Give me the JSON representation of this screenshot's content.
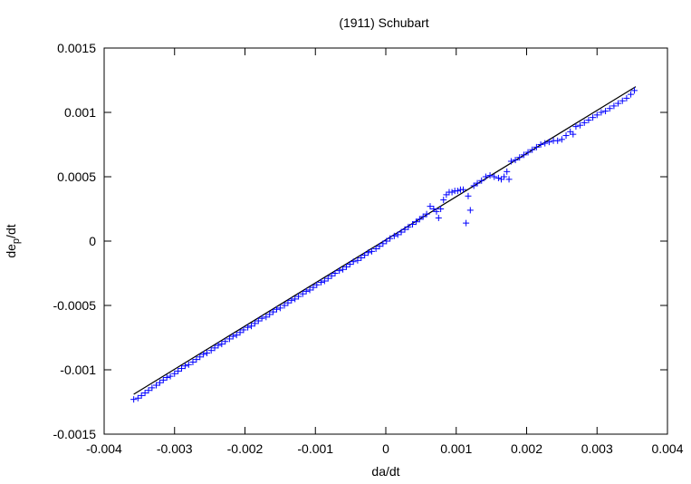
{
  "chart_data": {
    "type": "scatter",
    "title": "(1911) Schubart",
    "xlabel": "da/dt",
    "ylabel_main": "de",
    "ylabel_sub": "p",
    "ylabel_tail": "/dt",
    "xlim": [
      -0.004,
      0.004
    ],
    "ylim": [
      -0.0015,
      0.0015
    ],
    "x_ticks": [
      -0.004,
      -0.003,
      -0.002,
      -0.001,
      0,
      0.001,
      0.002,
      0.003,
      0.004
    ],
    "x_tick_labels": [
      "-0.004",
      "-0.003",
      "-0.002",
      "-0.001",
      "0",
      "0.001",
      "0.002",
      "0.003",
      "0.004"
    ],
    "y_ticks": [
      -0.0015,
      -0.001,
      -0.0005,
      0,
      0.0005,
      0.001,
      0.0015
    ],
    "y_tick_labels": [
      "-0.0015",
      "-0.001",
      "-0.0005",
      "0",
      "0.0005",
      "0.001",
      "0.0015"
    ],
    "grid": false,
    "marker_color": "#0000ff",
    "line_color": "#000000",
    "fit_line": {
      "x": [
        -0.00358,
        0.00355
      ],
      "y": [
        -0.00119,
        0.0012
      ]
    },
    "series": [
      {
        "marker": "+",
        "points": [
          [
            -0.00358,
            -0.00123
          ],
          [
            -0.00352,
            -0.00122
          ],
          [
            -0.00347,
            -0.0012
          ],
          [
            -0.00342,
            -0.00118
          ],
          [
            -0.00337,
            -0.00116
          ],
          [
            -0.00332,
            -0.00114
          ],
          [
            -0.00326,
            -0.00112
          ],
          [
            -0.00321,
            -0.0011
          ],
          [
            -0.00316,
            -0.00108
          ],
          [
            -0.00311,
            -0.00106
          ],
          [
            -0.00306,
            -0.00105
          ],
          [
            -0.003,
            -0.00103
          ],
          [
            -0.00295,
            -0.00101
          ],
          [
            -0.0029,
            -0.00099
          ],
          [
            -0.00285,
            -0.00097
          ],
          [
            -0.0028,
            -0.00096
          ],
          [
            -0.00274,
            -0.00094
          ],
          [
            -0.00269,
            -0.00092
          ],
          [
            -0.00264,
            -0.0009
          ],
          [
            -0.00259,
            -0.00088
          ],
          [
            -0.00254,
            -0.00087
          ],
          [
            -0.00248,
            -0.00085
          ],
          [
            -0.00243,
            -0.00083
          ],
          [
            -0.00238,
            -0.00081
          ],
          [
            -0.00233,
            -0.0008
          ],
          [
            -0.00228,
            -0.00078
          ],
          [
            -0.00222,
            -0.00076
          ],
          [
            -0.00217,
            -0.00074
          ],
          [
            -0.00212,
            -0.00073
          ],
          [
            -0.00207,
            -0.00071
          ],
          [
            -0.00202,
            -0.00069
          ],
          [
            -0.00196,
            -0.00067
          ],
          [
            -0.00191,
            -0.00066
          ],
          [
            -0.00186,
            -0.00064
          ],
          [
            -0.00181,
            -0.00062
          ],
          [
            -0.00176,
            -0.0006
          ],
          [
            -0.0017,
            -0.00059
          ],
          [
            -0.00165,
            -0.00057
          ],
          [
            -0.0016,
            -0.00055
          ],
          [
            -0.00155,
            -0.00053
          ],
          [
            -0.0015,
            -0.00052
          ],
          [
            -0.00144,
            -0.0005
          ],
          [
            -0.00139,
            -0.00048
          ],
          [
            -0.00134,
            -0.00046
          ],
          [
            -0.00129,
            -0.00045
          ],
          [
            -0.00124,
            -0.00043
          ],
          [
            -0.00118,
            -0.00041
          ],
          [
            -0.00113,
            -0.00039
          ],
          [
            -0.00108,
            -0.00038
          ],
          [
            -0.00103,
            -0.00036
          ],
          [
            -0.00098,
            -0.00034
          ],
          [
            -0.00092,
            -0.00032
          ],
          [
            -0.00087,
            -0.00031
          ],
          [
            -0.00082,
            -0.00029
          ],
          [
            -0.00077,
            -0.00027
          ],
          [
            -0.00072,
            -0.00025
          ],
          [
            -0.00066,
            -0.00023
          ],
          [
            -0.00061,
            -0.00022
          ],
          [
            -0.00056,
            -0.0002
          ],
          [
            -0.00051,
            -0.00018
          ],
          [
            -0.00046,
            -0.00016
          ],
          [
            -0.0004,
            -0.00015
          ],
          [
            -0.00035,
            -0.00013
          ],
          [
            -0.0003,
            -0.00011
          ],
          [
            -0.00025,
            -9e-05
          ],
          [
            -0.0002,
            -8e-05
          ],
          [
            -0.00014,
            -6e-05
          ],
          [
            -9e-05,
            -4e-05
          ],
          [
            -4e-05,
            -2e-05
          ],
          [
            1e-05,
            0.0
          ],
          [
            6e-05,
            2e-05
          ],
          [
            0.00012,
            4e-05
          ],
          [
            0.00017,
            5e-05
          ],
          [
            0.00022,
            7e-05
          ],
          [
            0.00027,
            9e-05
          ],
          [
            0.00032,
            0.00011
          ],
          [
            0.00038,
            0.00013
          ],
          [
            0.00043,
            0.00015
          ],
          [
            0.00048,
            0.00017
          ],
          [
            0.00053,
            0.00019
          ],
          [
            0.00058,
            0.00021
          ],
          [
            0.00063,
            0.00027
          ],
          [
            0.00068,
            0.00025
          ],
          [
            0.00072,
            0.00023
          ],
          [
            0.00075,
            0.00018
          ],
          [
            0.00078,
            0.00025
          ],
          [
            0.00082,
            0.00032
          ],
          [
            0.00086,
            0.00036
          ],
          [
            0.0009,
            0.00038
          ],
          [
            0.00094,
            0.00038
          ],
          [
            0.00098,
            0.00039
          ],
          [
            0.00102,
            0.00039
          ],
          [
            0.00106,
            0.0004
          ],
          [
            0.0011,
            0.0004
          ],
          [
            0.00114,
            0.00014
          ],
          [
            0.00117,
            0.00035
          ],
          [
            0.0012,
            0.00024
          ],
          [
            0.00125,
            0.00043
          ],
          [
            0.0013,
            0.00045
          ],
          [
            0.00136,
            0.00047
          ],
          [
            0.00142,
            0.0005
          ],
          [
            0.00148,
            0.00051
          ],
          [
            0.00154,
            0.0005
          ],
          [
            0.0016,
            0.00049
          ],
          [
            0.00164,
            0.00048
          ],
          [
            0.00168,
            0.0005
          ],
          [
            0.00172,
            0.00054
          ],
          [
            0.00175,
            0.00048
          ],
          [
            0.00178,
            0.00062
          ],
          [
            0.00184,
            0.00063
          ],
          [
            0.0019,
            0.00065
          ],
          [
            0.00196,
            0.00067
          ],
          [
            0.00202,
            0.00069
          ],
          [
            0.00208,
            0.00071
          ],
          [
            0.00214,
            0.00073
          ],
          [
            0.0022,
            0.00075
          ],
          [
            0.00226,
            0.00076
          ],
          [
            0.00232,
            0.00077
          ],
          [
            0.00238,
            0.00078
          ],
          [
            0.00244,
            0.00078
          ],
          [
            0.0025,
            0.00079
          ],
          [
            0.00256,
            0.00082
          ],
          [
            0.00262,
            0.00085
          ],
          [
            0.00266,
            0.00083
          ],
          [
            0.0027,
            0.00089
          ],
          [
            0.00276,
            0.0009
          ],
          [
            0.00282,
            0.00092
          ],
          [
            0.00288,
            0.00094
          ],
          [
            0.00294,
            0.00096
          ],
          [
            0.003,
            0.00098
          ],
          [
            0.00306,
            0.001
          ],
          [
            0.00312,
            0.00101
          ],
          [
            0.00318,
            0.00103
          ],
          [
            0.00324,
            0.00105
          ],
          [
            0.0033,
            0.00107
          ],
          [
            0.00336,
            0.00109
          ],
          [
            0.00342,
            0.00111
          ],
          [
            0.00348,
            0.00114
          ],
          [
            0.00353,
            0.00117
          ]
        ]
      }
    ]
  }
}
